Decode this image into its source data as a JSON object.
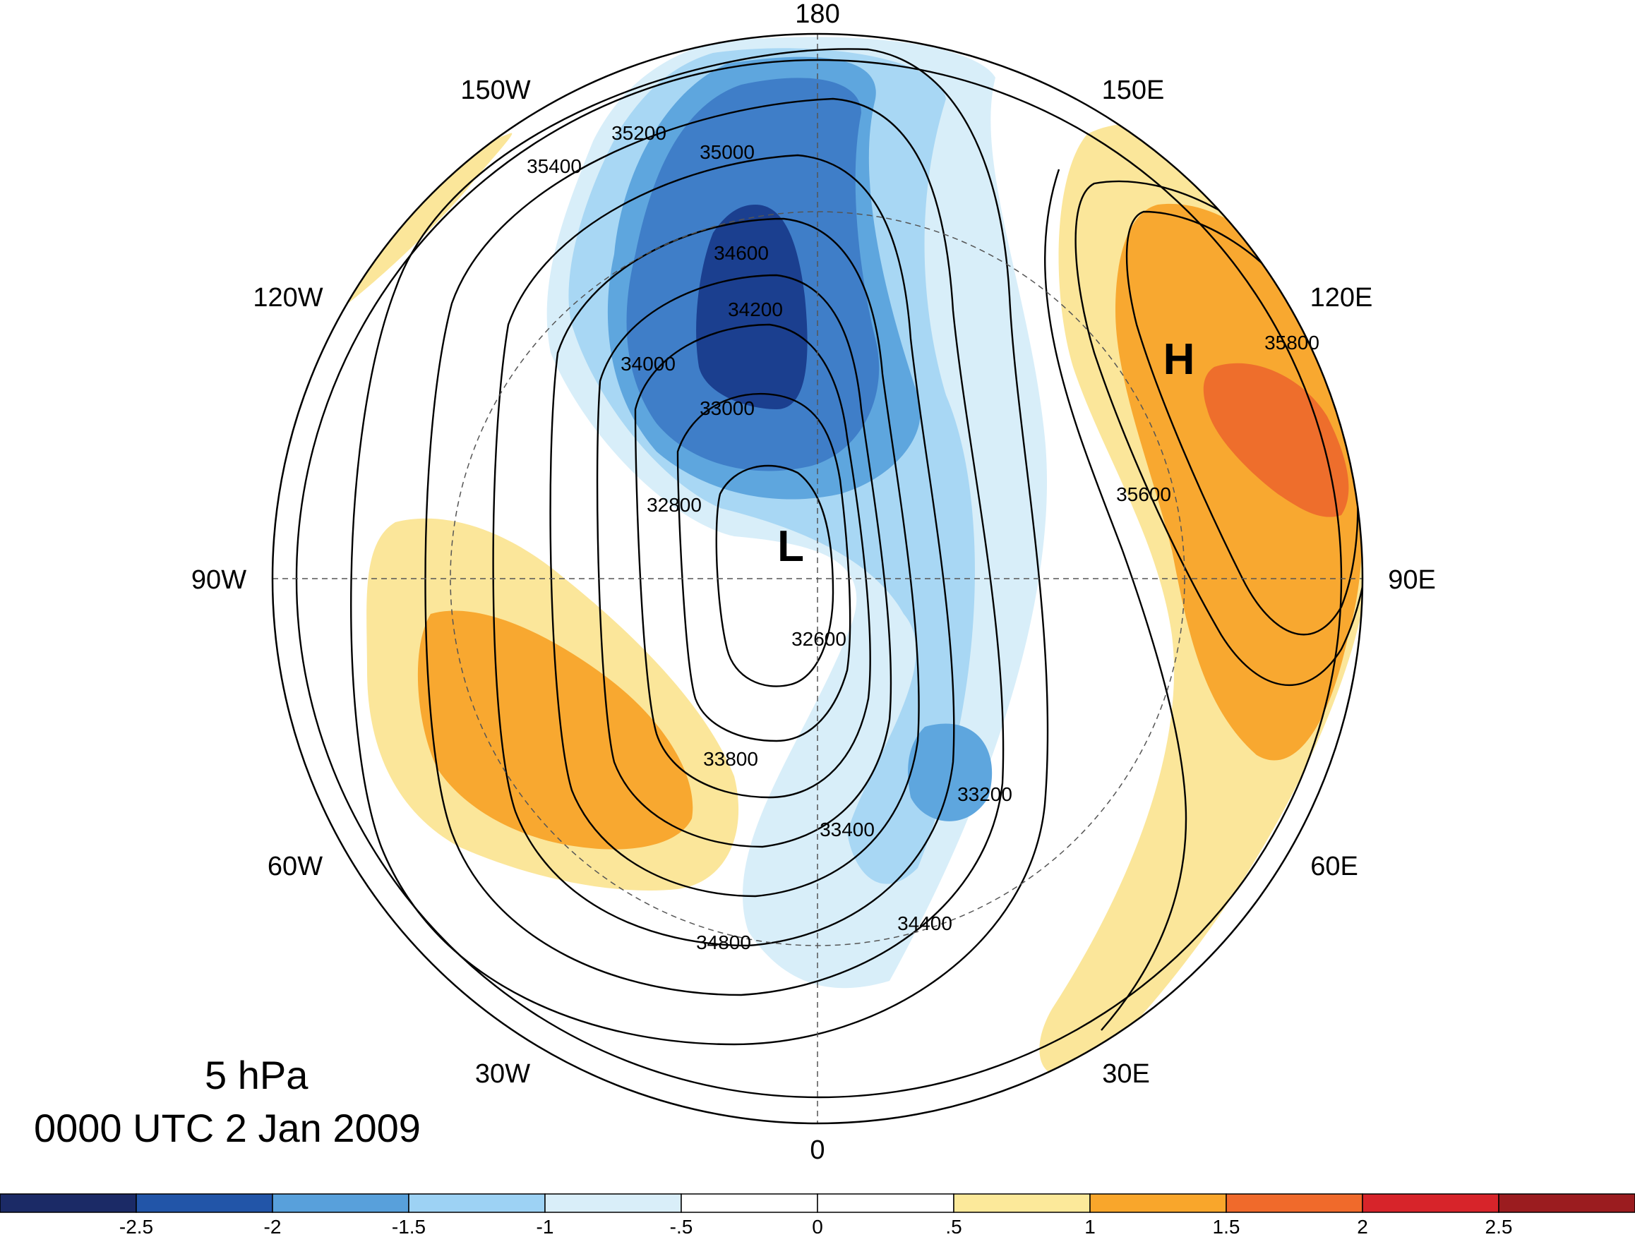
{
  "title": {
    "level": "5 hPa",
    "time": "0000 UTC 2 Jan 2009"
  },
  "longitude_labels": [
    {
      "text": "180",
      "lon": 180
    },
    {
      "text": "150E",
      "lon": 150
    },
    {
      "text": "120E",
      "lon": 120
    },
    {
      "text": "90E",
      "lon": 90
    },
    {
      "text": "60E",
      "lon": 60
    },
    {
      "text": "30E",
      "lon": 30
    },
    {
      "text": "0",
      "lon": 0
    },
    {
      "text": "30W",
      "lon": -30
    },
    {
      "text": "60W",
      "lon": -60
    },
    {
      "text": "90W",
      "lon": -90
    },
    {
      "text": "120W",
      "lon": -120
    },
    {
      "text": "150W",
      "lon": -150
    }
  ],
  "pressure_centers": [
    {
      "symbol": "L",
      "meaning": "low"
    },
    {
      "symbol": "H",
      "meaning": "high"
    }
  ],
  "contour_labels": [
    "32600",
    "32800",
    "33000",
    "33200",
    "33400",
    "33800",
    "34000",
    "34200",
    "34400",
    "34600",
    "34800",
    "35000",
    "35200",
    "35400",
    "35600",
    "35800"
  ],
  "colorbar": {
    "ticks": [
      "-2.5",
      "-2",
      "-1.5",
      "-1",
      "-.5",
      "0",
      ".5",
      "1",
      "1.5",
      "2",
      "2.5"
    ],
    "colors": [
      "#1b2a66",
      "#2255a8",
      "#58a0db",
      "#9dd2f4",
      "#d9eef9",
      "#ffffff",
      "#ffffff",
      "#fce99a",
      "#f9a62b",
      "#f06a2b",
      "#d7242a",
      "#9b1c1f"
    ]
  },
  "shading_colors": {
    "neg_25": "#1b3f8f",
    "neg_2": "#3f7ec8",
    "neg_15": "#5ea6de",
    "neg_1": "#a8d7f4",
    "neg_05": "#d8eef9",
    "pos_05": "#fbe69a",
    "pos_1": "#f8a830",
    "pos_15": "#ee6e2c"
  }
}
